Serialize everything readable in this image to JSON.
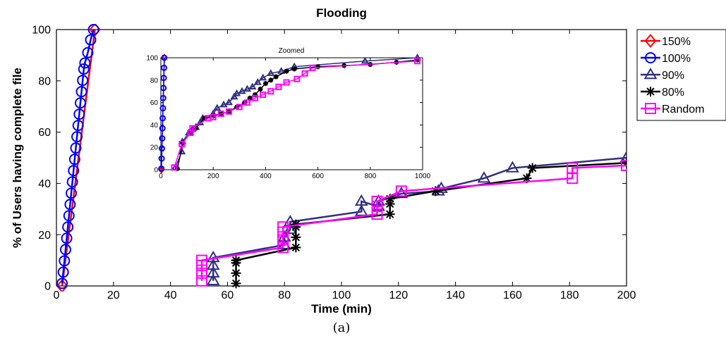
{
  "chart_data": [
    {
      "type": "line",
      "title": "Flooding",
      "xlabel": "Time (min)",
      "ylabel": "% of Users having complete file",
      "xlim": [
        0,
        200
      ],
      "ylim": [
        0,
        100
      ],
      "xticks": [
        "0",
        "20",
        "40",
        "60",
        "80",
        "100",
        "120",
        "140",
        "160",
        "180",
        "200"
      ],
      "yticks": [
        "0",
        "20",
        "40",
        "60",
        "80",
        "100"
      ],
      "grid": false,
      "legend": "outside-right",
      "series": [
        {
          "name": "150%",
          "color": "#ff0000",
          "marker": "diamond",
          "x": [
            2,
            13.5
          ],
          "y": [
            0,
            100
          ]
        },
        {
          "name": "100%",
          "color": "#0000ff",
          "marker": "circle",
          "x": [
            2,
            2.4,
            2.8,
            3.2,
            3.6,
            4.0,
            4.4,
            4.8,
            5.2,
            5.6,
            6.0,
            6.4,
            6.8,
            7.2,
            7.6,
            8.0,
            8.4,
            8.8,
            9.2,
            9.6,
            10.0,
            11.0,
            12.0,
            13.0
          ],
          "y": [
            1,
            5.4,
            9.8,
            14.2,
            18.6,
            23,
            27.4,
            31.8,
            36.2,
            40.6,
            45,
            49.4,
            53.8,
            58.2,
            62.6,
            67,
            71.4,
            75.8,
            80.2,
            84.6,
            87,
            91,
            96,
            100
          ]
        },
        {
          "name": "90%",
          "color": "#303080",
          "marker": "triangle",
          "x": [
            55,
            55,
            55,
            55,
            80,
            80,
            82,
            82,
            107,
            107,
            113,
            113,
            121,
            134,
            135,
            150,
            160,
            200
          ],
          "y": [
            2,
            5,
            8,
            11,
            16,
            19,
            22,
            25,
            29,
            33,
            31,
            33,
            36,
            37,
            38,
            42,
            46,
            50
          ]
        },
        {
          "name": "80%",
          "color": "#000000",
          "marker": "star",
          "x": [
            63,
            63,
            63,
            63,
            84,
            84,
            84,
            84,
            117,
            117,
            117,
            133,
            165,
            167,
            200
          ],
          "y": [
            1,
            5,
            9,
            10,
            15,
            19,
            23,
            24,
            28,
            32,
            34,
            37,
            42,
            46,
            48
          ]
        },
        {
          "name": "Random",
          "color": "#ff00ff",
          "marker": "square",
          "x": [
            51,
            51,
            51,
            51,
            79.5,
            79.5,
            79.5,
            79.5,
            112.5,
            112.5,
            112.5,
            121,
            181,
            181,
            200
          ],
          "y": [
            2,
            5,
            8,
            10,
            15,
            18,
            21,
            23,
            28,
            31,
            33,
            37,
            42,
            46,
            47
          ]
        }
      ]
    },
    {
      "type": "line",
      "title": "Zoomed",
      "xlabel": "",
      "ylabel": "",
      "xlim": [
        0,
        1000
      ],
      "ylim": [
        0,
        100
      ],
      "xticks": [
        "0",
        "200",
        "400",
        "600",
        "800",
        "1000"
      ],
      "yticks": [
        "0",
        "20",
        "40",
        "60",
        "80",
        "100"
      ],
      "grid": false,
      "series": [
        {
          "name": "150%",
          "color": "#ff0000",
          "marker": "diamond",
          "x": [
            2,
            13.5
          ],
          "y": [
            0,
            100
          ]
        },
        {
          "name": "100%",
          "color": "#0000ff",
          "marker": "circle",
          "x": [
            2,
            3,
            4,
            5,
            6,
            7,
            8,
            9,
            10,
            11,
            12,
            13
          ],
          "y": [
            1,
            10,
            19,
            28,
            37,
            46,
            55,
            64,
            73,
            82,
            91,
            100
          ]
        },
        {
          "name": "90%",
          "color": "#303080",
          "marker": "triangle",
          "x": [
            55,
            80,
            82,
            107,
            113,
            121,
            134,
            150,
            160,
            200,
            215,
            240,
            260,
            280,
            290,
            310,
            330,
            350,
            370,
            390,
            420,
            460,
            510,
            780,
            980
          ],
          "y": [
            2,
            16,
            25,
            33,
            33,
            36,
            38,
            42,
            46,
            50,
            55,
            58,
            60,
            65,
            68,
            70,
            72,
            74,
            78,
            82,
            86,
            88,
            92,
            97,
            100
          ]
        },
        {
          "name": "80%",
          "color": "#000000",
          "marker": "star",
          "x": [
            63,
            84,
            117,
            133,
            167,
            200,
            230,
            260,
            290,
            320,
            340,
            360,
            380,
            400,
            420,
            440,
            480,
            510,
            600,
            700,
            800,
            900,
            980
          ],
          "y": [
            1,
            24,
            34,
            37,
            46,
            48,
            50,
            52,
            56,
            60,
            64,
            67,
            72,
            77,
            80,
            83,
            88,
            90,
            92,
            93,
            94,
            96,
            98
          ]
        },
        {
          "name": "Random",
          "color": "#ff00ff",
          "marker": "square",
          "x": [
            51,
            80,
            113,
            121,
            181,
            200,
            230,
            260,
            300,
            330,
            360,
            390,
            420,
            450,
            480,
            520,
            550,
            580,
            980
          ],
          "y": [
            2,
            23,
            33,
            37,
            46,
            47,
            50,
            52,
            56,
            60,
            64,
            67,
            70,
            74,
            78,
            81,
            86,
            91,
            97
          ]
        }
      ]
    }
  ],
  "caption": "(a)"
}
